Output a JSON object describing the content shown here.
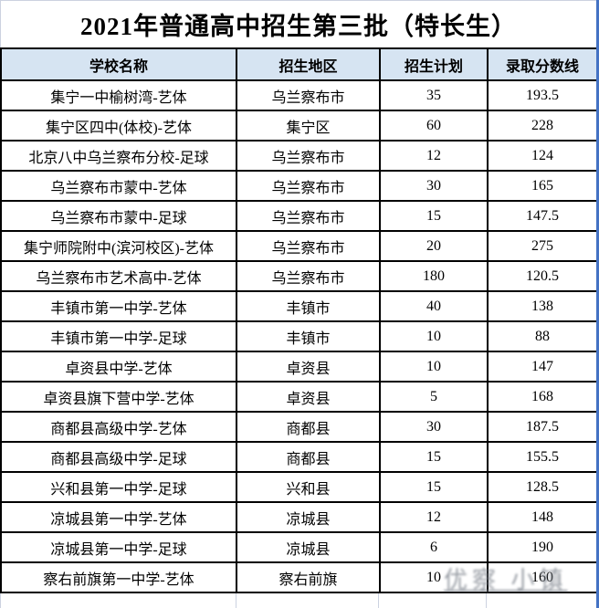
{
  "title": "2021年普通高中招生第三批（特长生）",
  "table": {
    "headers": [
      "学校名称",
      "招生地区",
      "招生计划",
      "录取分数线"
    ],
    "rows": [
      [
        "集宁一中榆树湾-艺体",
        "乌兰察布市",
        "35",
        "193.5"
      ],
      [
        "集宁区四中(体校)-艺体",
        "集宁区",
        "60",
        "228"
      ],
      [
        "北京八中乌兰察布分校-足球",
        "乌兰察布市",
        "12",
        "124"
      ],
      [
        "乌兰察布市蒙中-艺体",
        "乌兰察布市",
        "30",
        "165"
      ],
      [
        "乌兰察布市蒙中-足球",
        "乌兰察布市",
        "15",
        "147.5"
      ],
      [
        "集宁师院附中(滨河校区)-艺体",
        "乌兰察布市",
        "20",
        "275"
      ],
      [
        "乌兰察布市艺术高中-艺体",
        "乌兰察布市",
        "180",
        "120.5"
      ],
      [
        "丰镇市第一中学-艺体",
        "丰镇市",
        "40",
        "138"
      ],
      [
        "丰镇市第一中学-足球",
        "丰镇市",
        "10",
        "88"
      ],
      [
        "卓资县中学-艺体",
        "卓资县",
        "10",
        "147"
      ],
      [
        "卓资县旗下营中学-艺体",
        "卓资县",
        "5",
        "168"
      ],
      [
        "商都县高级中学-艺体",
        "商都县",
        "30",
        "187.5"
      ],
      [
        "商都县高级中学-足球",
        "商都县",
        "15",
        "155.5"
      ],
      [
        "兴和县第一中学-足球",
        "兴和县",
        "15",
        "128.5"
      ],
      [
        "凉城县第一中学-艺体",
        "凉城县",
        "12",
        "148"
      ],
      [
        "凉城县第一中学-足球",
        "凉城县",
        "6",
        "190"
      ],
      [
        "察右前旗第一中学-艺体",
        "察右前旗",
        "10",
        "160"
      ]
    ]
  },
  "watermark_glyphs": "优察 小镇",
  "colors": {
    "header_bg": "#d6e4f2",
    "grid_line": "#000000",
    "outer_accent": "#4472c4",
    "light_border": "#ccd2e0",
    "watermark": "#80868f"
  }
}
